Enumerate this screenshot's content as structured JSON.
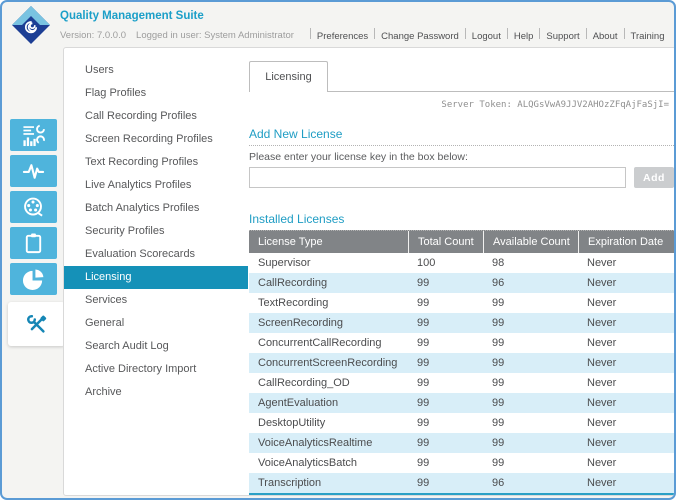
{
  "app": {
    "title": "Quality Management Suite",
    "version_label": "Version: 7.0.0.0",
    "logged_in_label": "Logged in user: System Administrator"
  },
  "header": {
    "menu_items": [
      "Preferences",
      "Change Password",
      "Logout",
      "Help",
      "Support",
      "About",
      "Training"
    ]
  },
  "sidebar": {
    "icons": [
      {
        "name": "dashboard-reports",
        "selected": false
      },
      {
        "name": "audio-pulse",
        "selected": false
      },
      {
        "name": "media-reel",
        "selected": false
      },
      {
        "name": "clipboard",
        "selected": false
      },
      {
        "name": "pie-chart",
        "selected": false
      },
      {
        "name": "tools",
        "selected": true
      }
    ]
  },
  "nav": {
    "items": [
      {
        "label": "Users",
        "selected": false
      },
      {
        "label": "Flag Profiles",
        "selected": false
      },
      {
        "label": "Call Recording Profiles",
        "selected": false
      },
      {
        "label": "Screen Recording Profiles",
        "selected": false
      },
      {
        "label": "Text Recording Profiles",
        "selected": false
      },
      {
        "label": "Live Analytics Profiles",
        "selected": false
      },
      {
        "label": "Batch Analytics Profiles",
        "selected": false
      },
      {
        "label": "Security Profiles",
        "selected": false
      },
      {
        "label": "Evaluation Scorecards",
        "selected": false
      },
      {
        "label": "Licensing",
        "selected": true
      },
      {
        "label": "Services",
        "selected": false
      },
      {
        "label": "General",
        "selected": false
      },
      {
        "label": "Search Audit Log",
        "selected": false
      },
      {
        "label": "Active Directory Import",
        "selected": false
      },
      {
        "label": "Archive",
        "selected": false
      }
    ]
  },
  "main": {
    "tab_label": "Licensing",
    "server_token": "Server Token: ALQGsVwA9JJV2AHOzZFqAjFaSjI=",
    "add_license": {
      "heading": "Add New License",
      "instruction": "Please enter your license key in the box below:",
      "input_value": "",
      "button_label": "Add"
    },
    "installed": {
      "heading": "Installed Licenses",
      "table": {
        "columns": [
          "License Type",
          "Total Count",
          "Available Count",
          "Expiration Date"
        ],
        "rows": [
          [
            "Supervisor",
            "100",
            "98",
            "Never"
          ],
          [
            "CallRecording",
            "99",
            "96",
            "Never"
          ],
          [
            "TextRecording",
            "99",
            "99",
            "Never"
          ],
          [
            "ScreenRecording",
            "99",
            "99",
            "Never"
          ],
          [
            "ConcurrentCallRecording",
            "99",
            "99",
            "Never"
          ],
          [
            "ConcurrentScreenRecording",
            "99",
            "99",
            "Never"
          ],
          [
            "CallRecording_OD",
            "99",
            "99",
            "Never"
          ],
          [
            "AgentEvaluation",
            "99",
            "99",
            "Never"
          ],
          [
            "DesktopUtility",
            "99",
            "99",
            "Never"
          ],
          [
            "VoiceAnalyticsRealtime",
            "99",
            "99",
            "Never"
          ],
          [
            "VoiceAnalyticsBatch",
            "99",
            "99",
            "Never"
          ],
          [
            "Transcription",
            "99",
            "96",
            "Never"
          ]
        ]
      }
    }
  },
  "colors": {
    "window_border_blue": "#5b9bd5",
    "accent_teal": "#1f9dc4",
    "selected_nav_teal": "#1591b8",
    "tile_blue": "#4fb4dc",
    "table_header_gray": "#818487",
    "alt_row_blue": "#d8eef8",
    "table_bottom_teal": "#2ba0c6",
    "disabled_button_gray": "#cbcdcf"
  }
}
